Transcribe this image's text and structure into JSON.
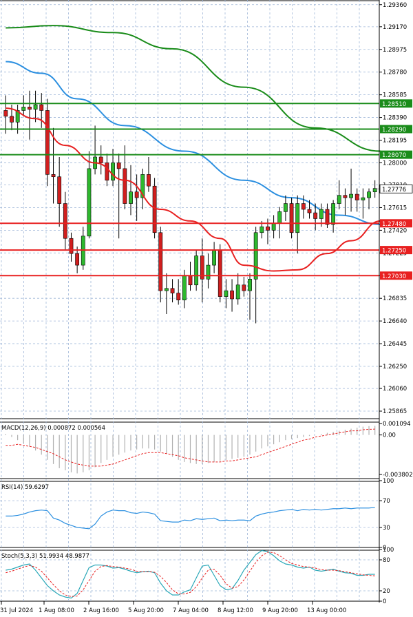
{
  "chart_data": [
    {
      "type": "candlestick",
      "panel": "price",
      "ylim": [
        1.258,
        1.294
      ],
      "y_ticks": [
        "1.29360",
        "1.29170",
        "1.28975",
        "1.28780",
        "1.28585",
        "1.28390",
        "1.28195",
        "1.28000",
        "1.27810",
        "1.27615",
        "1.27420",
        "1.27225",
        "1.27030",
        "1.26835",
        "1.26640",
        "1.26445",
        "1.26250",
        "1.26060",
        "1.25865"
      ],
      "x_labels": [
        "31 Jul 2024",
        "1 Aug 08:00",
        "2 Aug 16:00",
        "5 Aug 20:00",
        "7 Aug 04:00",
        "8 Aug 12:00",
        "9 Aug 20:00",
        "13 Aug 00:00"
      ],
      "candles": [
        {
          "o": 1.2845,
          "h": 1.2858,
          "l": 1.2825,
          "c": 1.284
        },
        {
          "o": 1.284,
          "h": 1.285,
          "l": 1.2828,
          "c": 1.2835
        },
        {
          "o": 1.2835,
          "h": 1.285,
          "l": 1.2825,
          "c": 1.2845
        },
        {
          "o": 1.2845,
          "h": 1.2858,
          "l": 1.284,
          "c": 1.2848
        },
        {
          "o": 1.2848,
          "h": 1.2862,
          "l": 1.282,
          "c": 1.2846
        },
        {
          "o": 1.2846,
          "h": 1.2862,
          "l": 1.2835,
          "c": 1.285
        },
        {
          "o": 1.285,
          "h": 1.286,
          "l": 1.283,
          "c": 1.2845
        },
        {
          "o": 1.2845,
          "h": 1.2855,
          "l": 1.278,
          "c": 1.279
        },
        {
          "o": 1.279,
          "h": 1.283,
          "l": 1.2765,
          "c": 1.2788
        },
        {
          "o": 1.2788,
          "h": 1.2805,
          "l": 1.2745,
          "c": 1.2765
        },
        {
          "o": 1.2765,
          "h": 1.2775,
          "l": 1.2725,
          "c": 1.2735
        },
        {
          "o": 1.2735,
          "h": 1.274,
          "l": 1.2715,
          "c": 1.2722
        },
        {
          "o": 1.2722,
          "h": 1.2728,
          "l": 1.2705,
          "c": 1.2712
        },
        {
          "o": 1.2712,
          "h": 1.2745,
          "l": 1.2708,
          "c": 1.2737
        },
        {
          "o": 1.2737,
          "h": 1.281,
          "l": 1.2735,
          "c": 1.2795
        },
        {
          "o": 1.2795,
          "h": 1.2832,
          "l": 1.279,
          "c": 1.2805
        },
        {
          "o": 1.2805,
          "h": 1.2815,
          "l": 1.279,
          "c": 1.28
        },
        {
          "o": 1.28,
          "h": 1.2808,
          "l": 1.278,
          "c": 1.2785
        },
        {
          "o": 1.2785,
          "h": 1.2812,
          "l": 1.278,
          "c": 1.28
        },
        {
          "o": 1.28,
          "h": 1.2808,
          "l": 1.2735,
          "c": 1.2795
        },
        {
          "o": 1.2795,
          "h": 1.2815,
          "l": 1.276,
          "c": 1.2765
        },
        {
          "o": 1.2765,
          "h": 1.2798,
          "l": 1.2755,
          "c": 1.2775
        },
        {
          "o": 1.2775,
          "h": 1.279,
          "l": 1.275,
          "c": 1.277
        },
        {
          "o": 1.277,
          "h": 1.2795,
          "l": 1.276,
          "c": 1.279
        },
        {
          "o": 1.279,
          "h": 1.2805,
          "l": 1.2775,
          "c": 1.278
        },
        {
          "o": 1.278,
          "h": 1.2787,
          "l": 1.2735,
          "c": 1.274
        },
        {
          "o": 1.274,
          "h": 1.2745,
          "l": 1.268,
          "c": 1.269
        },
        {
          "o": 1.269,
          "h": 1.2705,
          "l": 1.267,
          "c": 1.2692
        },
        {
          "o": 1.2692,
          "h": 1.27,
          "l": 1.268,
          "c": 1.2688
        },
        {
          "o": 1.2688,
          "h": 1.27,
          "l": 1.2678,
          "c": 1.2682
        },
        {
          "o": 1.2682,
          "h": 1.2708,
          "l": 1.2675,
          "c": 1.2703
        },
        {
          "o": 1.2703,
          "h": 1.2715,
          "l": 1.269,
          "c": 1.2695
        },
        {
          "o": 1.2695,
          "h": 1.2725,
          "l": 1.269,
          "c": 1.272
        },
        {
          "o": 1.272,
          "h": 1.2735,
          "l": 1.268,
          "c": 1.27
        },
        {
          "o": 1.27,
          "h": 1.2722,
          "l": 1.2692,
          "c": 1.2712
        },
        {
          "o": 1.2712,
          "h": 1.2732,
          "l": 1.2705,
          "c": 1.2725
        },
        {
          "o": 1.2725,
          "h": 1.273,
          "l": 1.268,
          "c": 1.2685
        },
        {
          "o": 1.2685,
          "h": 1.27,
          "l": 1.2675,
          "c": 1.269
        },
        {
          "o": 1.269,
          "h": 1.27,
          "l": 1.2672,
          "c": 1.2683
        },
        {
          "o": 1.2683,
          "h": 1.2705,
          "l": 1.2678,
          "c": 1.2695
        },
        {
          "o": 1.2695,
          "h": 1.2702,
          "l": 1.2685,
          "c": 1.269
        },
        {
          "o": 1.269,
          "h": 1.2705,
          "l": 1.2665,
          "c": 1.27
        },
        {
          "o": 1.27,
          "h": 1.2745,
          "l": 1.2662,
          "c": 1.274
        },
        {
          "o": 1.274,
          "h": 1.275,
          "l": 1.2735,
          "c": 1.2745
        },
        {
          "o": 1.2745,
          "h": 1.2752,
          "l": 1.273,
          "c": 1.2742
        },
        {
          "o": 1.2742,
          "h": 1.2755,
          "l": 1.2735,
          "c": 1.2748
        },
        {
          "o": 1.2748,
          "h": 1.2762,
          "l": 1.2735,
          "c": 1.2758
        },
        {
          "o": 1.2758,
          "h": 1.2772,
          "l": 1.275,
          "c": 1.2765
        },
        {
          "o": 1.2765,
          "h": 1.277,
          "l": 1.2735,
          "c": 1.274
        },
        {
          "o": 1.274,
          "h": 1.2772,
          "l": 1.2722,
          "c": 1.2765
        },
        {
          "o": 1.2765,
          "h": 1.2772,
          "l": 1.2752,
          "c": 1.276
        },
        {
          "o": 1.276,
          "h": 1.2768,
          "l": 1.2752,
          "c": 1.2757
        },
        {
          "o": 1.2757,
          "h": 1.2765,
          "l": 1.2742,
          "c": 1.2752
        },
        {
          "o": 1.2752,
          "h": 1.2765,
          "l": 1.2745,
          "c": 1.276
        },
        {
          "o": 1.276,
          "h": 1.2765,
          "l": 1.2744,
          "c": 1.2747
        },
        {
          "o": 1.2747,
          "h": 1.2768,
          "l": 1.274,
          "c": 1.2765
        },
        {
          "o": 1.2765,
          "h": 1.2785,
          "l": 1.276,
          "c": 1.2772
        },
        {
          "o": 1.2772,
          "h": 1.2778,
          "l": 1.2755,
          "c": 1.277
        },
        {
          "o": 1.277,
          "h": 1.2795,
          "l": 1.2758,
          "c": 1.2773
        },
        {
          "o": 1.2773,
          "h": 1.2778,
          "l": 1.2758,
          "c": 1.2768
        },
        {
          "o": 1.2768,
          "h": 1.2778,
          "l": 1.2752,
          "c": 1.277
        },
        {
          "o": 1.277,
          "h": 1.2778,
          "l": 1.276,
          "c": 1.2775
        },
        {
          "o": 1.2775,
          "h": 1.2785,
          "l": 1.277,
          "c": 1.2778
        }
      ],
      "ma_slow": {
        "color": "#1a8c1a",
        "values": [
          [
            0,
            1.2916
          ],
          [
            8,
            1.2918
          ],
          [
            18,
            1.2912
          ],
          [
            28,
            1.2898
          ],
          [
            40,
            1.2865
          ],
          [
            52,
            1.283
          ],
          [
            63,
            1.281
          ]
        ]
      },
      "ma_mid": {
        "color": "#2b8fe0",
        "values": [
          [
            0,
            1.2887
          ],
          [
            6,
            1.2877
          ],
          [
            12,
            1.2855
          ],
          [
            20,
            1.2832
          ],
          [
            30,
            1.281
          ],
          [
            40,
            1.2785
          ],
          [
            48,
            1.277
          ],
          [
            56,
            1.2755
          ],
          [
            63,
            1.2747
          ]
        ]
      },
      "ma_fast": {
        "color": "#e82020",
        "values": [
          [
            0,
            1.2847
          ],
          [
            5,
            1.2838
          ],
          [
            10,
            1.2815
          ],
          [
            15,
            1.28
          ],
          [
            20,
            1.2785
          ],
          [
            26,
            1.276
          ],
          [
            31,
            1.275
          ],
          [
            36,
            1.2735
          ],
          [
            40,
            1.2712
          ],
          [
            45,
            1.2707
          ],
          [
            49,
            1.2708
          ],
          [
            54,
            1.2722
          ],
          [
            58,
            1.2733
          ],
          [
            63,
            1.275
          ]
        ]
      },
      "levels": [
        {
          "value": 1.2851,
          "label": "1.28510",
          "color": "#1a8c1a"
        },
        {
          "value": 1.2829,
          "label": "1.28290",
          "color": "#1a8c1a"
        },
        {
          "value": 1.2807,
          "label": "1.28070",
          "color": "#1a8c1a"
        },
        {
          "value": 1.2748,
          "label": "1.27480",
          "color": "#e82020"
        },
        {
          "value": 1.2725,
          "label": "1.27250",
          "color": "#e82020"
        },
        {
          "value": 1.2703,
          "label": "1.27030",
          "color": "#e82020"
        }
      ],
      "current_price": {
        "value": 1.27776,
        "label": "1.27776"
      }
    },
    {
      "type": "bar",
      "panel": "macd",
      "label": "MACD(12,26,9) 0.000872 0.000564",
      "ylim": [
        -0.0042,
        0.0013
      ],
      "y_ticks": [
        "0.001094",
        "0.00",
        "-0.003802"
      ],
      "histogram": [
        0.0001,
        -0.0002,
        -0.0005,
        -0.0008,
        -0.0011,
        -0.0015,
        -0.0019,
        -0.0024,
        -0.0028,
        -0.0032,
        -0.0034,
        -0.0036,
        -0.0037,
        -0.0036,
        -0.0034,
        -0.0031,
        -0.0027,
        -0.0024,
        -0.0021,
        -0.0019,
        -0.0017,
        -0.0015,
        -0.0014,
        -0.0013,
        -0.0013,
        -0.0014,
        -0.0016,
        -0.0018,
        -0.0021,
        -0.0024,
        -0.0026,
        -0.0027,
        -0.0028,
        -0.0028,
        -0.0027,
        -0.0026,
        -0.0025,
        -0.0024,
        -0.0023,
        -0.0022,
        -0.0021,
        -0.0019,
        -0.0016,
        -0.0013,
        -0.0011,
        -0.0009,
        -0.0007,
        -0.0005,
        -0.0004,
        -0.0003,
        -0.0002,
        -0.0001,
        -0.0,
        0.0001,
        0.0002,
        0.0003,
        0.0004,
        0.0005,
        0.0006,
        0.0007,
        0.0008,
        0.00085,
        0.00087
      ],
      "signal": [
        -0.001,
        -0.001,
        -0.0009,
        -0.001,
        -0.0011,
        -0.0012,
        -0.0014,
        -0.0016,
        -0.0018,
        -0.0021,
        -0.0024,
        -0.0026,
        -0.0028,
        -0.0029,
        -0.003,
        -0.003,
        -0.003,
        -0.0029,
        -0.0028,
        -0.0026,
        -0.0024,
        -0.0022,
        -0.002,
        -0.0018,
        -0.0017,
        -0.0017,
        -0.0017,
        -0.0018,
        -0.0019,
        -0.002,
        -0.0022,
        -0.0023,
        -0.0024,
        -0.0025,
        -0.0026,
        -0.0026,
        -0.0026,
        -0.0025,
        -0.0025,
        -0.0024,
        -0.0023,
        -0.0022,
        -0.0021,
        -0.0019,
        -0.0017,
        -0.0015,
        -0.0013,
        -0.0011,
        -0.0009,
        -0.0007,
        -0.0005,
        -0.0004,
        -0.0002,
        -0.0001,
        0.0,
        0.0001,
        0.0002,
        0.0003,
        0.0004,
        0.0004,
        0.0005,
        0.00054,
        0.00056
      ]
    },
    {
      "type": "line",
      "panel": "rsi",
      "label": "RSI(14) 59.6297",
      "ylim": [
        0,
        100
      ],
      "y_ticks": [
        "100",
        "70",
        "30",
        "0"
      ],
      "values": [
        47,
        47,
        48,
        50,
        53,
        55,
        56,
        55,
        44,
        41,
        36,
        33,
        30,
        29,
        28,
        35,
        47,
        53,
        56,
        55,
        55,
        52,
        51,
        53,
        52,
        50,
        40,
        39,
        38,
        38,
        41,
        40,
        43,
        42,
        43,
        44,
        40,
        41,
        40,
        41,
        41,
        40,
        47,
        50,
        52,
        53,
        55,
        56,
        57,
        55,
        57,
        56,
        57,
        56,
        57,
        58,
        58,
        59,
        58,
        59,
        59,
        59,
        60
      ]
    },
    {
      "type": "line",
      "panel": "stoch",
      "label": "Stoch(5,3,3) 51.9934 48.9877",
      "ylim": [
        0,
        100
      ],
      "y_ticks": [
        "100",
        "80",
        "20",
        "0"
      ],
      "k": [
        60,
        62,
        66,
        70,
        72,
        60,
        45,
        30,
        20,
        12,
        8,
        6,
        15,
        40,
        65,
        70,
        70,
        68,
        64,
        65,
        62,
        58,
        55,
        57,
        58,
        55,
        35,
        20,
        12,
        12,
        18,
        22,
        45,
        68,
        70,
        50,
        30,
        22,
        24,
        40,
        60,
        75,
        90,
        98,
        96,
        88,
        78,
        72,
        70,
        66,
        64,
        66,
        60,
        58,
        60,
        62,
        58,
        55,
        54,
        50,
        50,
        52,
        52
      ],
      "d": [
        55,
        58,
        62,
        66,
        69,
        66,
        58,
        45,
        32,
        20,
        12,
        9,
        10,
        22,
        40,
        58,
        67,
        69,
        67,
        66,
        64,
        62,
        58,
        57,
        57,
        56,
        48,
        36,
        22,
        14,
        14,
        17,
        28,
        45,
        60,
        62,
        50,
        34,
        25,
        28,
        41,
        58,
        75,
        88,
        95,
        94,
        88,
        80,
        73,
        70,
        67,
        66,
        64,
        61,
        60,
        60,
        59,
        57,
        55,
        53,
        51,
        50,
        49
      ]
    }
  ]
}
